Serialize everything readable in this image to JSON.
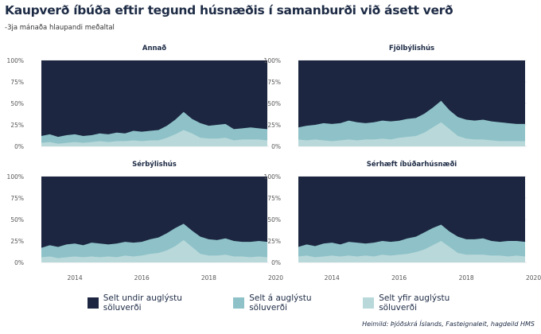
{
  "header": {
    "title": "Kaupverð íbúða eftir tegund húsnæðis í samanburði við ásett verð",
    "subtitle": "-3ja mánaða hlaupandi meðaltal"
  },
  "caption": "Heimild: Þjóðskrá Íslands, Fasteignaleit, hagdeild HMS",
  "colors": {
    "under": "#1c2640",
    "at": "#8ec2c8",
    "over": "#b9d8da",
    "grid": "#e3e3e3",
    "text": "#1d2b45"
  },
  "legend": [
    {
      "label": "Selt undir auglýstu söluverði",
      "color": "#1c2640"
    },
    {
      "label": "Selt á auglýstu söluverði",
      "color": "#8ec2c8"
    },
    {
      "label": "Selt yfir auglýstu söluverði",
      "color": "#b9d8da"
    }
  ],
  "chart_data": {
    "type": "area",
    "stacked": true,
    "x_range": [
      2013.0,
      2019.75
    ],
    "x_ticks": [
      "2014",
      "2016",
      "2018",
      "2020"
    ],
    "y_ticks": [
      "0%",
      "25%",
      "50%",
      "75%",
      "100%"
    ],
    "ylim": [
      0,
      100
    ],
    "grid": true,
    "legend_position": "bottom",
    "facets": [
      {
        "title": "Annað",
        "over": [
          [
            2013.0,
            4
          ],
          [
            2013.25,
            5
          ],
          [
            2013.5,
            3
          ],
          [
            2013.75,
            4
          ],
          [
            2014.0,
            5
          ],
          [
            2014.25,
            4
          ],
          [
            2014.5,
            5
          ],
          [
            2014.75,
            6
          ],
          [
            2015.0,
            5
          ],
          [
            2015.25,
            6
          ],
          [
            2015.5,
            6
          ],
          [
            2015.75,
            7
          ],
          [
            2016.0,
            6
          ],
          [
            2016.25,
            7
          ],
          [
            2016.5,
            7
          ],
          [
            2016.75,
            10
          ],
          [
            2017.0,
            14
          ],
          [
            2017.25,
            19
          ],
          [
            2017.5,
            15
          ],
          [
            2017.75,
            10
          ],
          [
            2018.0,
            9
          ],
          [
            2018.25,
            9
          ],
          [
            2018.5,
            10
          ],
          [
            2018.75,
            7
          ],
          [
            2019.0,
            8
          ],
          [
            2019.25,
            8
          ],
          [
            2019.5,
            8
          ],
          [
            2019.75,
            7
          ]
        ],
        "total": [
          [
            2013.0,
            12
          ],
          [
            2013.25,
            14
          ],
          [
            2013.5,
            11
          ],
          [
            2013.75,
            13
          ],
          [
            2014.0,
            14
          ],
          [
            2014.25,
            12
          ],
          [
            2014.5,
            13
          ],
          [
            2014.75,
            15
          ],
          [
            2015.0,
            14
          ],
          [
            2015.25,
            16
          ],
          [
            2015.5,
            15
          ],
          [
            2015.75,
            18
          ],
          [
            2016.0,
            17
          ],
          [
            2016.25,
            18
          ],
          [
            2016.5,
            19
          ],
          [
            2016.75,
            24
          ],
          [
            2017.0,
            31
          ],
          [
            2017.25,
            40
          ],
          [
            2017.5,
            32
          ],
          [
            2017.75,
            27
          ],
          [
            2018.0,
            24
          ],
          [
            2018.25,
            25
          ],
          [
            2018.5,
            26
          ],
          [
            2018.75,
            20
          ],
          [
            2019.0,
            21
          ],
          [
            2019.25,
            22
          ],
          [
            2019.5,
            21
          ],
          [
            2019.75,
            20
          ]
        ]
      },
      {
        "title": "Fjölbýlishús",
        "over": [
          [
            2013.0,
            8
          ],
          [
            2013.25,
            7
          ],
          [
            2013.5,
            8
          ],
          [
            2013.75,
            7
          ],
          [
            2014.0,
            6
          ],
          [
            2014.25,
            7
          ],
          [
            2014.5,
            8
          ],
          [
            2014.75,
            7
          ],
          [
            2015.0,
            8
          ],
          [
            2015.25,
            8
          ],
          [
            2015.5,
            9
          ],
          [
            2015.75,
            8
          ],
          [
            2016.0,
            10
          ],
          [
            2016.25,
            11
          ],
          [
            2016.5,
            12
          ],
          [
            2016.75,
            16
          ],
          [
            2017.0,
            22
          ],
          [
            2017.25,
            28
          ],
          [
            2017.5,
            20
          ],
          [
            2017.75,
            12
          ],
          [
            2018.0,
            9
          ],
          [
            2018.25,
            8
          ],
          [
            2018.5,
            8
          ],
          [
            2018.75,
            7
          ],
          [
            2019.0,
            6
          ],
          [
            2019.25,
            6
          ],
          [
            2019.5,
            6
          ],
          [
            2019.75,
            6
          ]
        ],
        "total": [
          [
            2013.0,
            22
          ],
          [
            2013.25,
            24
          ],
          [
            2013.5,
            25
          ],
          [
            2013.75,
            27
          ],
          [
            2014.0,
            26
          ],
          [
            2014.25,
            27
          ],
          [
            2014.5,
            30
          ],
          [
            2014.75,
            28
          ],
          [
            2015.0,
            27
          ],
          [
            2015.25,
            28
          ],
          [
            2015.5,
            30
          ],
          [
            2015.75,
            29
          ],
          [
            2016.0,
            30
          ],
          [
            2016.25,
            32
          ],
          [
            2016.5,
            33
          ],
          [
            2016.75,
            38
          ],
          [
            2017.0,
            45
          ],
          [
            2017.25,
            53
          ],
          [
            2017.5,
            42
          ],
          [
            2017.75,
            34
          ],
          [
            2018.0,
            31
          ],
          [
            2018.25,
            30
          ],
          [
            2018.5,
            31
          ],
          [
            2018.75,
            29
          ],
          [
            2019.0,
            28
          ],
          [
            2019.25,
            27
          ],
          [
            2019.5,
            26
          ],
          [
            2019.75,
            26
          ]
        ]
      },
      {
        "title": "Sérbýlishús",
        "over": [
          [
            2013.0,
            6
          ],
          [
            2013.25,
            7
          ],
          [
            2013.5,
            5
          ],
          [
            2013.75,
            6
          ],
          [
            2014.0,
            7
          ],
          [
            2014.25,
            6
          ],
          [
            2014.5,
            7
          ],
          [
            2014.75,
            6
          ],
          [
            2015.0,
            7
          ],
          [
            2015.25,
            6
          ],
          [
            2015.5,
            8
          ],
          [
            2015.75,
            7
          ],
          [
            2016.0,
            8
          ],
          [
            2016.25,
            10
          ],
          [
            2016.5,
            11
          ],
          [
            2016.75,
            14
          ],
          [
            2017.0,
            19
          ],
          [
            2017.25,
            26
          ],
          [
            2017.5,
            18
          ],
          [
            2017.75,
            10
          ],
          [
            2018.0,
            8
          ],
          [
            2018.25,
            8
          ],
          [
            2018.5,
            9
          ],
          [
            2018.75,
            7
          ],
          [
            2019.0,
            7
          ],
          [
            2019.25,
            6
          ],
          [
            2019.5,
            7
          ],
          [
            2019.75,
            6
          ]
        ],
        "total": [
          [
            2013.0,
            17
          ],
          [
            2013.25,
            20
          ],
          [
            2013.5,
            18
          ],
          [
            2013.75,
            21
          ],
          [
            2014.0,
            22
          ],
          [
            2014.25,
            20
          ],
          [
            2014.5,
            23
          ],
          [
            2014.75,
            22
          ],
          [
            2015.0,
            21
          ],
          [
            2015.25,
            22
          ],
          [
            2015.5,
            24
          ],
          [
            2015.75,
            23
          ],
          [
            2016.0,
            24
          ],
          [
            2016.25,
            27
          ],
          [
            2016.5,
            29
          ],
          [
            2016.75,
            34
          ],
          [
            2017.0,
            40
          ],
          [
            2017.25,
            45
          ],
          [
            2017.5,
            37
          ],
          [
            2017.75,
            30
          ],
          [
            2018.0,
            27
          ],
          [
            2018.25,
            26
          ],
          [
            2018.5,
            28
          ],
          [
            2018.75,
            25
          ],
          [
            2019.0,
            24
          ],
          [
            2019.25,
            24
          ],
          [
            2019.5,
            25
          ],
          [
            2019.75,
            24
          ]
        ]
      },
      {
        "title": "Sérhæft íbúðarhúsnæði",
        "over": [
          [
            2013.0,
            7
          ],
          [
            2013.25,
            8
          ],
          [
            2013.5,
            6
          ],
          [
            2013.75,
            7
          ],
          [
            2014.0,
            8
          ],
          [
            2014.25,
            7
          ],
          [
            2014.5,
            8
          ],
          [
            2014.75,
            7
          ],
          [
            2015.0,
            8
          ],
          [
            2015.25,
            7
          ],
          [
            2015.5,
            9
          ],
          [
            2015.75,
            8
          ],
          [
            2016.0,
            9
          ],
          [
            2016.25,
            10
          ],
          [
            2016.5,
            12
          ],
          [
            2016.75,
            15
          ],
          [
            2017.0,
            20
          ],
          [
            2017.25,
            25
          ],
          [
            2017.5,
            18
          ],
          [
            2017.75,
            11
          ],
          [
            2018.0,
            9
          ],
          [
            2018.25,
            9
          ],
          [
            2018.5,
            9
          ],
          [
            2018.75,
            8
          ],
          [
            2019.0,
            8
          ],
          [
            2019.25,
            7
          ],
          [
            2019.5,
            8
          ],
          [
            2019.75,
            7
          ]
        ],
        "total": [
          [
            2013.0,
            18
          ],
          [
            2013.25,
            21
          ],
          [
            2013.5,
            19
          ],
          [
            2013.75,
            22
          ],
          [
            2014.0,
            23
          ],
          [
            2014.25,
            21
          ],
          [
            2014.5,
            24
          ],
          [
            2014.75,
            23
          ],
          [
            2015.0,
            22
          ],
          [
            2015.25,
            23
          ],
          [
            2015.5,
            25
          ],
          [
            2015.75,
            24
          ],
          [
            2016.0,
            25
          ],
          [
            2016.25,
            28
          ],
          [
            2016.5,
            30
          ],
          [
            2016.75,
            35
          ],
          [
            2017.0,
            40
          ],
          [
            2017.25,
            44
          ],
          [
            2017.5,
            36
          ],
          [
            2017.75,
            30
          ],
          [
            2018.0,
            27
          ],
          [
            2018.25,
            27
          ],
          [
            2018.5,
            28
          ],
          [
            2018.75,
            25
          ],
          [
            2019.0,
            24
          ],
          [
            2019.25,
            25
          ],
          [
            2019.5,
            25
          ],
          [
            2019.75,
            24
          ]
        ]
      }
    ]
  }
}
